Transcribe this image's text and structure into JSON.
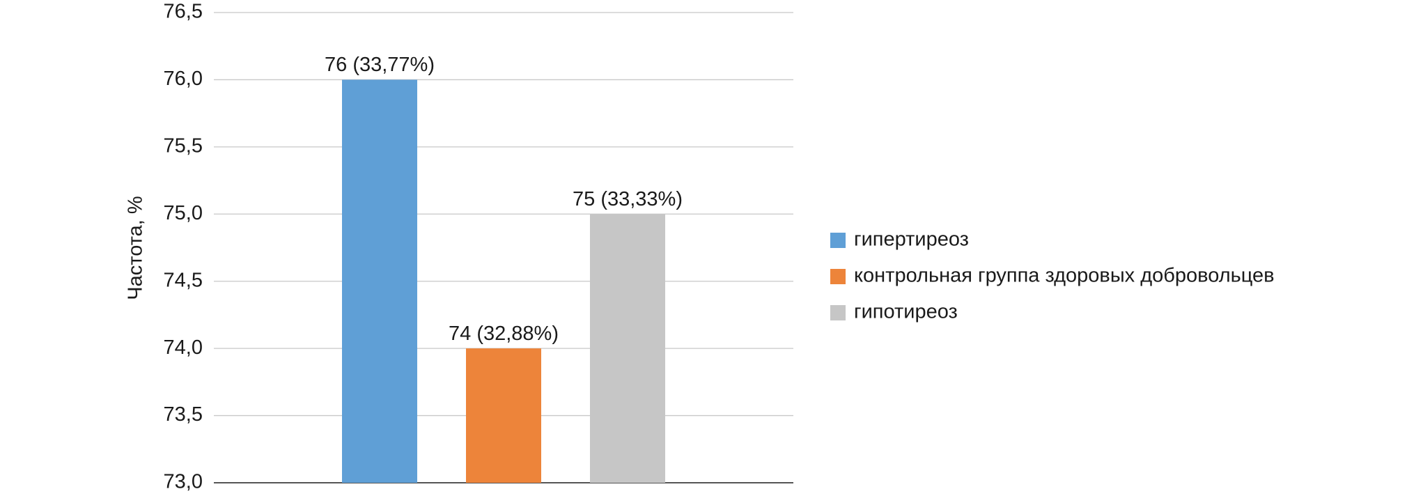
{
  "chart_data": {
    "type": "bar",
    "y_label": "Частота, %",
    "categories": [
      null
    ],
    "series": [
      {
        "name": "гипертиреоз",
        "color": "#5f9fd6",
        "values": [
          76
        ],
        "value_labels": [
          "76 (33,77%)"
        ]
      },
      {
        "name": "контрольная группа здоровых добровольцев",
        "color": "#ed843a",
        "values": [
          74
        ],
        "value_labels": [
          "74 (32,88%)"
        ]
      },
      {
        "name": "гипотиреоз",
        "color": "#c6c6c6",
        "values": [
          75
        ],
        "value_labels": [
          "75 (33,33%)"
        ]
      }
    ],
    "ylim": [
      73,
      76.5
    ],
    "yticks": [
      {
        "value": 73,
        "label": "73,0"
      },
      {
        "value": 73.5,
        "label": "73,5"
      },
      {
        "value": 74,
        "label": "74,0"
      },
      {
        "value": 74.5,
        "label": "74,5"
      },
      {
        "value": 75,
        "label": "75,0"
      },
      {
        "value": 75.5,
        "label": "75,5"
      },
      {
        "value": 76,
        "label": "76,0"
      },
      {
        "value": 76.5,
        "label": "76,5"
      }
    ],
    "grid": true,
    "legend": "right"
  }
}
